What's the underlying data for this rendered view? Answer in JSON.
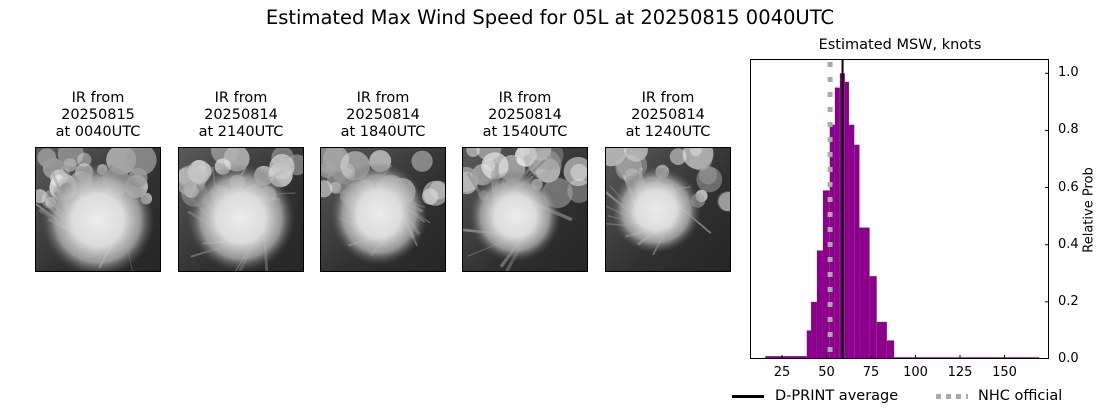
{
  "figure": {
    "suptitle": "Estimated Max Wind Speed for 05L at 20250815 0040UTC"
  },
  "ir_panels": [
    {
      "line1": "IR from",
      "line2": "20250815",
      "line3": "at 0040UTC"
    },
    {
      "line1": "IR from",
      "line2": "20250814",
      "line3": "at 2140UTC"
    },
    {
      "line1": "IR from",
      "line2": "20250814",
      "line3": "at 1840UTC"
    },
    {
      "line1": "IR from",
      "line2": "20250814",
      "line3": "at 1540UTC"
    },
    {
      "line1": "IR from",
      "line2": "20250814",
      "line3": "at 1240UTC"
    }
  ],
  "colors": {
    "histogram": "#8b008b",
    "dprint_line": "#000000",
    "nhc_line": "#aaaaaa"
  },
  "chart_data": {
    "type": "bar",
    "title": "Estimated MSW, knots",
    "xlabel": "",
    "ylabel": "Relative Prob",
    "xlim": [
      7,
      175
    ],
    "ylim": [
      0,
      1.05
    ],
    "xticks": [
      25,
      50,
      75,
      100,
      125,
      150
    ],
    "yticks": [
      0.0,
      0.2,
      0.4,
      0.6,
      0.8,
      1.0
    ],
    "ytick_labels": [
      "0.0",
      "0.2",
      "0.4",
      "0.6",
      "0.8",
      "1.0"
    ],
    "y_axis_position": "right",
    "grid": false,
    "bins": [
      {
        "left": 15.6,
        "right": 38.9,
        "value": 0.01
      },
      {
        "left": 38.9,
        "right": 41.3,
        "value": 0.1
      },
      {
        "left": 41.3,
        "right": 44.6,
        "value": 0.2
      },
      {
        "left": 44.6,
        "right": 48.0,
        "value": 0.38
      },
      {
        "left": 48.0,
        "right": 51.8,
        "value": 0.59
      },
      {
        "left": 51.8,
        "right": 54.7,
        "value": 0.82
      },
      {
        "left": 54.7,
        "right": 57.5,
        "value": 0.95
      },
      {
        "left": 57.5,
        "right": 60.3,
        "value": 1.0
      },
      {
        "left": 60.3,
        "right": 62.6,
        "value": 0.97
      },
      {
        "left": 62.6,
        "right": 65.6,
        "value": 0.82
      },
      {
        "left": 65.6,
        "right": 68.5,
        "value": 0.75
      },
      {
        "left": 68.5,
        "right": 74.2,
        "value": 0.46
      },
      {
        "left": 74.2,
        "right": 78.2,
        "value": 0.29
      },
      {
        "left": 78.2,
        "right": 83.9,
        "value": 0.13
      },
      {
        "left": 83.9,
        "right": 88.0,
        "value": 0.065
      },
      {
        "left": 88.0,
        "right": 169.5,
        "value": 0.006
      }
    ],
    "reference_lines": [
      {
        "name": "D-PRINT average",
        "x": 59,
        "style": "solid",
        "color": "#000000"
      },
      {
        "name": "NHC official",
        "x": 52,
        "style": "dotted",
        "color": "#aaaaaa"
      }
    ],
    "legend": {
      "position": "bottom",
      "entries": [
        "D-PRINT average",
        "NHC official"
      ]
    }
  },
  "legend": {
    "dprint_label": "D-PRINT average",
    "nhc_label": "NHC official"
  }
}
